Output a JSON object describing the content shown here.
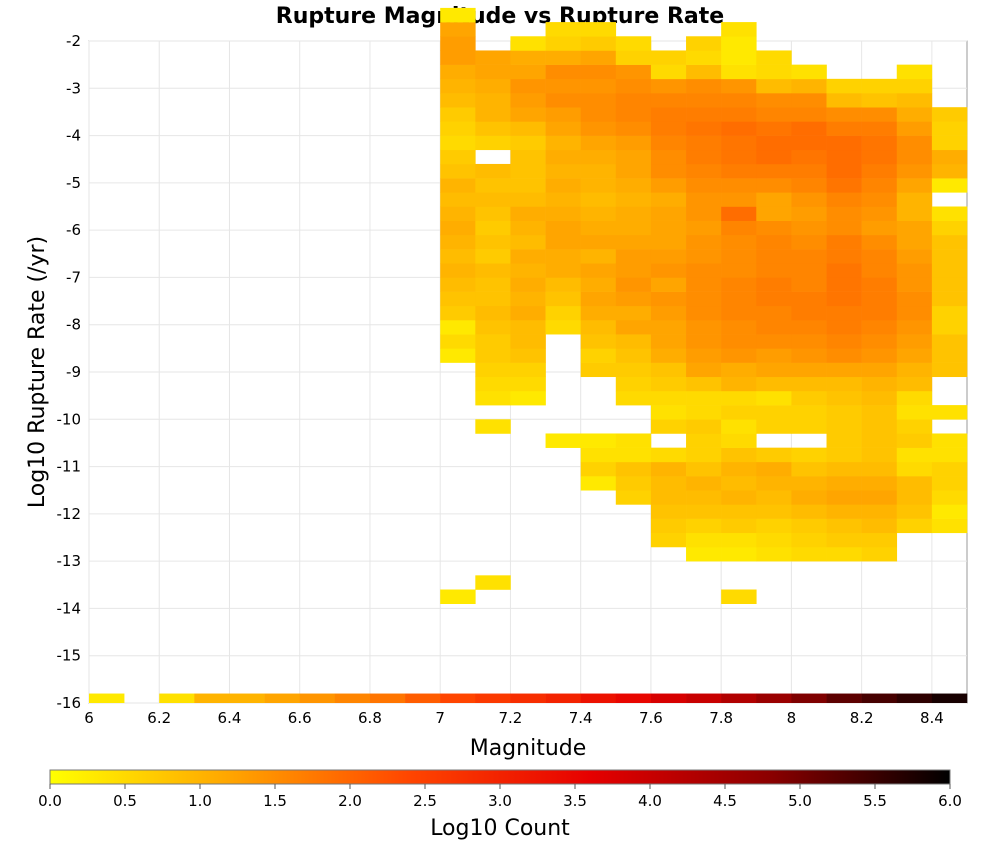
{
  "chart_data": {
    "type": "heatmap",
    "title": "Rupture Magnitude vs Rupture Rate",
    "xlabel": "Magnitude",
    "ylabel": "Log10 Rupture Rate (/yr)",
    "xlim": [
      6,
      8.5
    ],
    "ylim": [
      -16,
      -2
    ],
    "x_ticks": [
      "6",
      "6.2",
      "6.4",
      "6.6",
      "6.8",
      "7",
      "7.2",
      "7.4",
      "7.6",
      "7.8",
      "8",
      "8.2",
      "8.4"
    ],
    "y_ticks": [
      "-2",
      "-3",
      "-4",
      "-5",
      "-6",
      "-7",
      "-8",
      "-9",
      "-10",
      "-11",
      "-12",
      "-13",
      "-14",
      "-15",
      "-16"
    ],
    "grid": true,
    "colorscale": {
      "label": "Log10 Count",
      "min": 0,
      "max": 6,
      "ticks": [
        "0.0",
        "0.5",
        "1.0",
        "1.5",
        "2.0",
        "2.5",
        "3.0",
        "3.5",
        "4.0",
        "4.5",
        "5.0",
        "5.5",
        "6.0"
      ],
      "colors": [
        "#ffff00",
        "#ffa500",
        "#ff4500",
        "#e60000",
        "#8b0000",
        "#000000"
      ]
    },
    "bins": {
      "x_start": 7.0,
      "x_step": 0.1,
      "y_start": -16.0,
      "y_step": 0.3,
      "x_bins_count": 15,
      "columns": [
        {
          "x_index": 0,
          "first_row": 7,
          "values": [
            0.3,
            null,
            null,
            null,
            null,
            null,
            null,
            null,
            null,
            null,
            null,
            null,
            null,
            null,
            null,
            null,
            null,
            0.3,
            0.5,
            0.3,
            0.7,
            0.8,
            0.9,
            1.0,
            0.9,
            1.0,
            1.1,
            1.0,
            0.9,
            1.0,
            0.8,
            0.7,
            0.5,
            0.6,
            0.7,
            0.9,
            1.0,
            1.1,
            1.3,
            1.3,
            1.2,
            0.3
          ]
        },
        {
          "x_index": 1,
          "first_row": 7,
          "values": [
            null,
            0.4,
            null,
            null,
            null,
            null,
            null,
            null,
            null,
            null,
            null,
            null,
            0.4,
            null,
            0.4,
            0.5,
            0.6,
            0.7,
            0.7,
            0.8,
            0.9,
            0.8,
            0.8,
            0.9,
            0.7,
            0.8,
            0.7,
            0.8,
            0.9,
            0.8,
            0.9,
            null,
            0.6,
            0.8,
            1.0,
            1.0,
            1.1,
            1.2,
            1.2
          ]
        },
        {
          "x_index": 2,
          "first_row": 7,
          "values": [
            null,
            null,
            null,
            null,
            null,
            null,
            null,
            null,
            null,
            null,
            null,
            null,
            null,
            null,
            0.3,
            0.5,
            0.6,
            0.8,
            0.9,
            0.9,
            1.1,
            1.0,
            1.1,
            1.0,
            1.1,
            0.9,
            1.0,
            1.1,
            0.9,
            0.8,
            0.8,
            0.8,
            0.7,
            0.9,
            1.2,
            1.3,
            1.4,
            1.2,
            1.1,
            0.4
          ]
        },
        {
          "x_index": 3,
          "first_row": 7,
          "values": [
            null,
            null,
            null,
            null,
            null,
            null,
            null,
            null,
            null,
            null,
            null,
            0.3,
            null,
            null,
            null,
            null,
            null,
            null,
            null,
            0.5,
            0.6,
            0.8,
            0.9,
            1.1,
            1.1,
            1.2,
            1.2,
            1.1,
            1.0,
            1.1,
            1.0,
            1.1,
            1.0,
            1.2,
            1.3,
            1.5,
            1.4,
            1.5,
            1.1,
            0.6,
            0.5
          ]
        },
        {
          "x_index": 4,
          "first_row": 7,
          "values": [
            null,
            null,
            null,
            null,
            null,
            null,
            null,
            null,
            0.3,
            0.6,
            0.4,
            0.3,
            null,
            null,
            null,
            null,
            0.7,
            0.6,
            0.8,
            0.9,
            1.1,
            1.2,
            1.1,
            1.2,
            1.0,
            1.2,
            1.1,
            1.0,
            0.9,
            1.0,
            1.0,
            1.1,
            1.2,
            1.4,
            1.5,
            1.5,
            1.4,
            1.5,
            1.2,
            0.7,
            0.5
          ]
        },
        {
          "x_index": 5,
          "first_row": 7,
          "values": [
            null,
            null,
            null,
            null,
            null,
            null,
            null,
            0.6,
            0.7,
            0.8,
            0.4,
            0.4,
            null,
            null,
            0.5,
            0.6,
            0.7,
            0.8,
            0.9,
            1.2,
            1.1,
            1.3,
            1.4,
            1.3,
            1.3,
            1.2,
            1.1,
            1.1,
            1.0,
            1.1,
            1.2,
            1.2,
            1.3,
            1.5,
            1.6,
            1.6,
            1.5,
            1.4,
            0.6,
            0.5
          ]
        },
        {
          "x_index": 6,
          "first_row": 7,
          "values": [
            null,
            null,
            null,
            null,
            0.6,
            0.7,
            0.8,
            0.9,
            0.9,
            1.0,
            0.5,
            null,
            0.6,
            0.4,
            0.5,
            0.7,
            0.8,
            1.1,
            1.2,
            1.2,
            1.3,
            1.4,
            1.2,
            1.4,
            1.3,
            1.2,
            1.2,
            1.2,
            1.1,
            1.3,
            1.5,
            1.5,
            1.6,
            1.7,
            1.7,
            1.6,
            1.4,
            0.5,
            0.6
          ]
        },
        {
          "x_index": 7,
          "first_row": 7,
          "values": [
            null,
            null,
            null,
            0.3,
            0.4,
            0.6,
            0.8,
            0.9,
            1.0,
            0.8,
            0.6,
            0.6,
            0.7,
            0.5,
            0.5,
            0.8,
            1.2,
            1.3,
            1.4,
            1.4,
            1.5,
            1.5,
            1.5,
            1.5,
            1.4,
            1.4,
            1.3,
            1.4,
            1.4,
            1.5,
            1.6,
            1.7,
            1.7,
            1.8,
            1.7,
            1.6,
            1.5,
            0.9,
            0.5,
            0.6
          ]
        },
        {
          "x_index": 8,
          "first_row": 7,
          "values": [
            0.5,
            null,
            null,
            0.3,
            0.4,
            0.7,
            0.8,
            1.0,
            0.9,
            1.0,
            0.8,
            0.5,
            0.4,
            0.6,
            0.5,
            1.0,
            1.1,
            1.4,
            1.5,
            1.5,
            1.6,
            1.6,
            1.6,
            1.5,
            1.5,
            1.5,
            1.6,
            1.9,
            1.4,
            1.5,
            1.7,
            1.8,
            1.8,
            1.9,
            1.7,
            1.6,
            1.4,
            0.4,
            0.3,
            0.3,
            0.4
          ]
        },
        {
          "x_index": 9,
          "first_row": 7,
          "values": [
            null,
            null,
            null,
            0.4,
            0.5,
            0.6,
            0.8,
            0.9,
            1.0,
            1.1,
            0.7,
            null,
            0.6,
            0.6,
            0.4,
            0.9,
            1.2,
            1.3,
            1.5,
            1.6,
            1.6,
            1.7,
            1.7,
            1.6,
            1.6,
            1.6,
            1.5,
            1.2,
            1.2,
            1.5,
            1.7,
            1.9,
            1.9,
            1.8,
            1.6,
            1.5,
            0.9,
            0.5,
            0.5
          ]
        },
        {
          "x_index": 10,
          "first_row": 7,
          "values": [
            null,
            null,
            null,
            0.5,
            0.6,
            0.7,
            0.9,
            1.1,
            1.0,
            0.8,
            0.6,
            null,
            0.6,
            0.6,
            0.7,
            0.9,
            1.2,
            1.4,
            1.5,
            1.6,
            1.7,
            1.7,
            1.6,
            1.6,
            1.6,
            1.5,
            1.4,
            1.3,
            1.4,
            1.6,
            1.7,
            1.8,
            1.9,
            1.9,
            1.6,
            1.5,
            1.0,
            0.4
          ]
        },
        {
          "x_index": 11,
          "first_row": 7,
          "values": [
            null,
            null,
            null,
            0.5,
            0.7,
            0.8,
            1.0,
            1.2,
            1.1,
            0.9,
            0.7,
            0.7,
            0.7,
            0.7,
            0.8,
            0.9,
            1.2,
            1.5,
            1.6,
            1.7,
            1.7,
            1.8,
            1.8,
            1.8,
            1.7,
            1.7,
            1.5,
            1.5,
            1.6,
            1.8,
            1.9,
            1.9,
            1.9,
            1.7,
            1.5,
            0.9,
            0.6
          ]
        },
        {
          "x_index": 12,
          "first_row": 7,
          "values": [
            null,
            null,
            null,
            0.6,
            0.7,
            0.9,
            1.0,
            1.2,
            1.1,
            0.9,
            0.8,
            0.8,
            0.8,
            0.8,
            0.9,
            1.0,
            1.2,
            1.4,
            1.5,
            1.6,
            1.7,
            1.7,
            1.7,
            1.6,
            1.6,
            1.5,
            1.3,
            1.4,
            1.5,
            1.6,
            1.7,
            1.8,
            1.8,
            1.7,
            1.5,
            0.8,
            0.6
          ]
        },
        {
          "x_index": 13,
          "first_row": 7,
          "values": [
            null,
            null,
            null,
            null,
            null,
            0.6,
            0.8,
            0.9,
            0.9,
            0.5,
            0.4,
            0.7,
            0.6,
            0.4,
            0.5,
            0.9,
            1.0,
            1.2,
            1.3,
            1.4,
            1.5,
            1.5,
            1.4,
            1.4,
            1.3,
            1.2,
            1.2,
            1.0,
            1.0,
            1.2,
            1.4,
            1.5,
            1.5,
            1.3,
            1.1,
            0.9,
            0.6,
            0.4
          ]
        },
        {
          "x_index": 14,
          "first_row": 7,
          "values": [
            null,
            null,
            null,
            null,
            null,
            0.4,
            0.3,
            0.5,
            0.6,
            0.6,
            0.4,
            0.4,
            null,
            0.4,
            null,
            null,
            0.8,
            0.8,
            0.8,
            0.6,
            0.6,
            0.8,
            0.8,
            0.8,
            0.8,
            0.8,
            0.6,
            0.4,
            null,
            0.3,
            1.0,
            1.1,
            0.6,
            0.6,
            0.7
          ]
        }
      ],
      "bottom_row": {
        "y_from": -16.0,
        "y_to": -15.8,
        "x_start": 6.0,
        "x_step": 0.1,
        "values": [
          0.3,
          null,
          0.4,
          1.0,
          1.0,
          1.2,
          1.4,
          1.6,
          1.8,
          2.1,
          2.4,
          2.6,
          2.8,
          3.0,
          3.3,
          3.5,
          3.8,
          4.0,
          4.3,
          4.6,
          4.9,
          5.2,
          5.4,
          5.6,
          5.8
        ]
      }
    }
  }
}
